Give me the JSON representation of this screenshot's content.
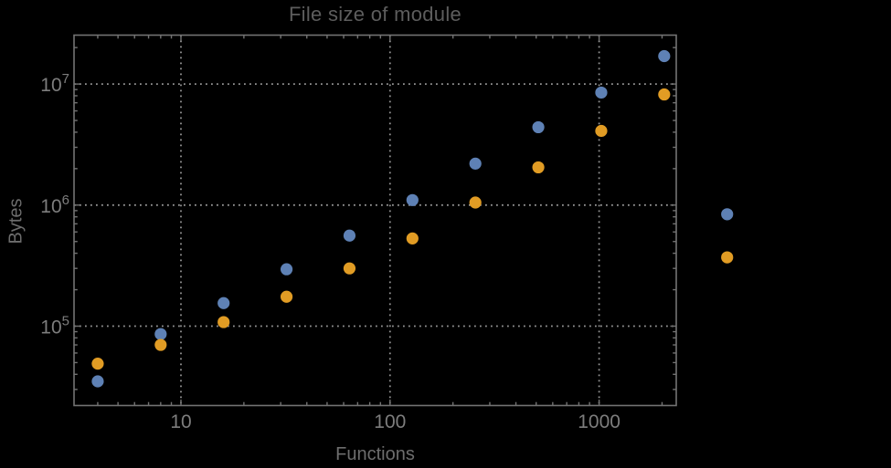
{
  "chart_data": {
    "type": "scatter",
    "title": "File size of module",
    "xlabel": "Functions",
    "ylabel": "Bytes",
    "x_scale": "log",
    "y_scale": "log",
    "grid": "dotted, at powers of ten only",
    "legend": "none",
    "background": "#000000",
    "x": [
      4,
      8,
      16,
      32,
      64,
      128,
      256,
      512,
      1024,
      2048,
      4096
    ],
    "series": [
      {
        "name": "series-1-blue",
        "color": "#5E81B5",
        "values": [
          35000,
          86000,
          155000,
          295000,
          560000,
          1100000,
          2200000,
          4400000,
          8500000,
          17000000,
          840000
        ]
      },
      {
        "name": "series-2-orange",
        "color": "#E19C24",
        "values": [
          49000,
          70000,
          108000,
          175000,
          300000,
          530000,
          1050000,
          2050000,
          4100000,
          8200000,
          370000
        ]
      }
    ],
    "x_tick_labels": [
      "10",
      "100",
      "1000"
    ],
    "x_tick_values": [
      10,
      100,
      1000
    ],
    "y_tick_exponents": [
      5,
      6,
      7
    ],
    "y_tick_values": [
      100000,
      1000000,
      10000000
    ],
    "xlim": [
      3,
      2340
    ],
    "ylim": [
      21900,
      25600000
    ],
    "note": "last data pair (x=4096) is drawn outside the right edge of the plot frame"
  },
  "colors": {
    "frame": "#737373",
    "grid": "#949494",
    "tick_labels": "#7d7d7d",
    "title": "#5d5d5d",
    "axis_labels": "#6d6d6d"
  }
}
